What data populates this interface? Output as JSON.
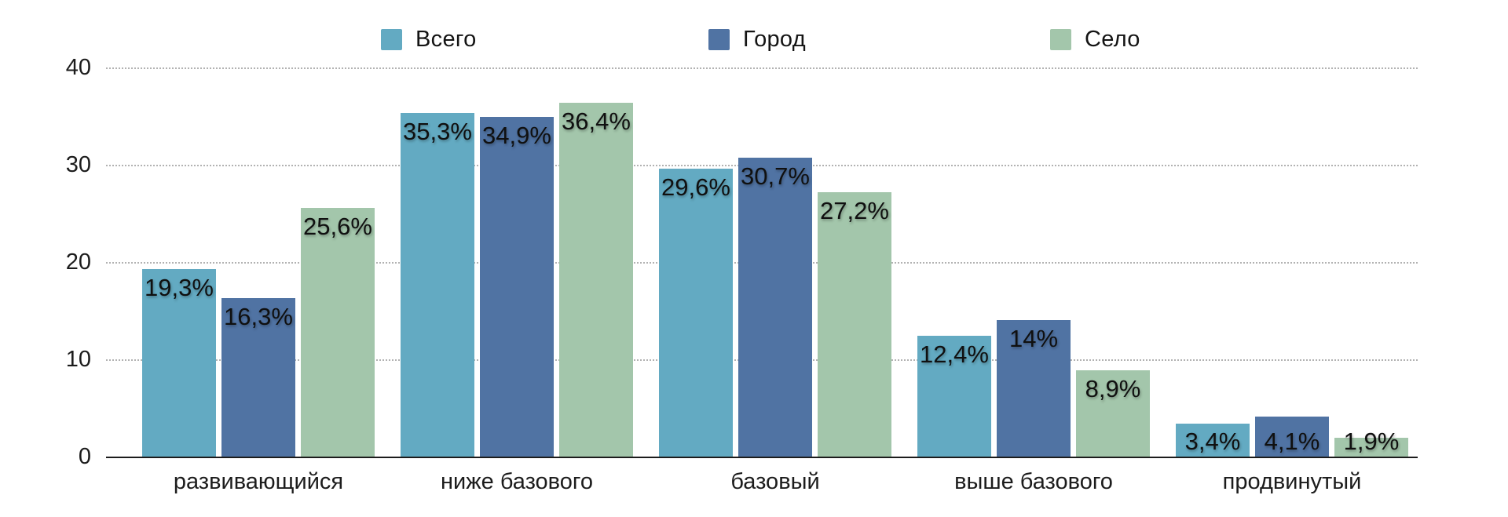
{
  "chart_data": {
    "type": "bar",
    "title": "",
    "xlabel": "",
    "ylabel": "",
    "ylim": [
      0,
      40
    ],
    "yticks": [
      0,
      10,
      20,
      30,
      40
    ],
    "grid": "horizontal-dotted",
    "legend_position": "top",
    "categories": [
      "развивающийся",
      "ниже базового",
      "базовый",
      "выше базового",
      "продвинутый"
    ],
    "series": [
      {
        "name": "Всего",
        "color": "#63aac2",
        "values": [
          19.3,
          35.3,
          29.6,
          12.4,
          3.4
        ],
        "labels": [
          "19,3%",
          "35,3%",
          "29,6%",
          "12,4%",
          "3,4%"
        ]
      },
      {
        "name": "Город",
        "color": "#5073a3",
        "values": [
          16.3,
          34.9,
          30.7,
          14.0,
          4.1
        ],
        "labels": [
          "16,3%",
          "34,9%",
          "30,7%",
          "14%",
          "4,1%"
        ]
      },
      {
        "name": "Село",
        "color": "#a3c6ab",
        "values": [
          25.6,
          36.4,
          27.2,
          8.9,
          1.9
        ],
        "labels": [
          "25,6%",
          "36,4%",
          "27,2%",
          "8,9%",
          "1,9%"
        ]
      }
    ]
  },
  "colors": {
    "grid": "#b2b2b2",
    "axis": "#1c1c1c",
    "text": "#141414"
  }
}
